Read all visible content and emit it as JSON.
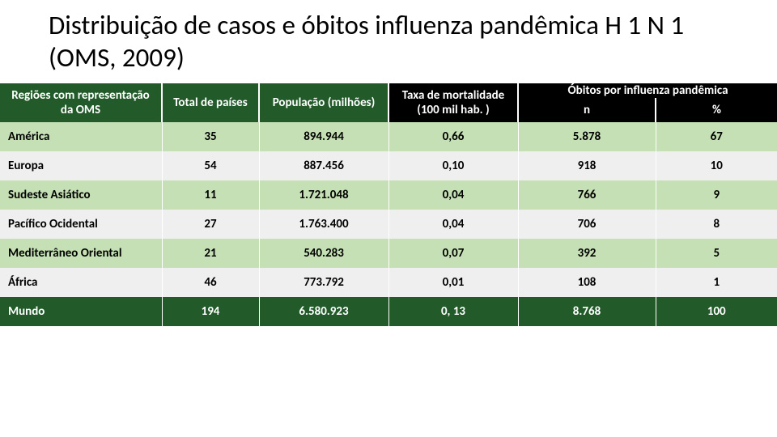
{
  "title": "Distribuição de casos e óbitos influenza pandêmica H 1 N 1 (OMS, 2009)",
  "table": {
    "type": "table",
    "header_bg_top": "#225a2a",
    "header_bg_bottom": "#000000",
    "header_text_color": "#ffffff",
    "row_band_a": "#c4e0b4",
    "row_band_b": "#efefef",
    "total_bg": "#225a2a",
    "columns": {
      "region": "Regiões com representação da OMS",
      "countries": "Total de países",
      "population": "População (milhões)",
      "mortality": "Taxa de mortalidade (100 mil hab. )",
      "deaths_group": "Óbitos por influenza pandêmica",
      "deaths_n": "n",
      "deaths_pct": "%"
    },
    "rows": [
      {
        "region": "América",
        "countries": "35",
        "population": "894.944",
        "mortality": "0,66",
        "deaths_n": "5.878",
        "deaths_pct": "67"
      },
      {
        "region": "Europa",
        "countries": "54",
        "population": "887.456",
        "mortality": "0,10",
        "deaths_n": "918",
        "deaths_pct": "10"
      },
      {
        "region": "Sudeste Asiático",
        "countries": "11",
        "population": "1.721.048",
        "mortality": "0,04",
        "deaths_n": "766",
        "deaths_pct": "9"
      },
      {
        "region": "Pacífico Ocidental",
        "countries": "27",
        "population": "1.763.400",
        "mortality": "0,04",
        "deaths_n": "706",
        "deaths_pct": "8"
      },
      {
        "region": "Mediterrâneo Oriental",
        "countries": "21",
        "population": "540.283",
        "mortality": "0,07",
        "deaths_n": "392",
        "deaths_pct": "5"
      },
      {
        "region": "África",
        "countries": "46",
        "population": "773.792",
        "mortality": "0,01",
        "deaths_n": "108",
        "deaths_pct": "1"
      }
    ],
    "total": {
      "region": "Mundo",
      "countries": "194",
      "population": "6.580.923",
      "mortality": "0, 13",
      "deaths_n": "8.768",
      "deaths_pct": "100"
    }
  }
}
